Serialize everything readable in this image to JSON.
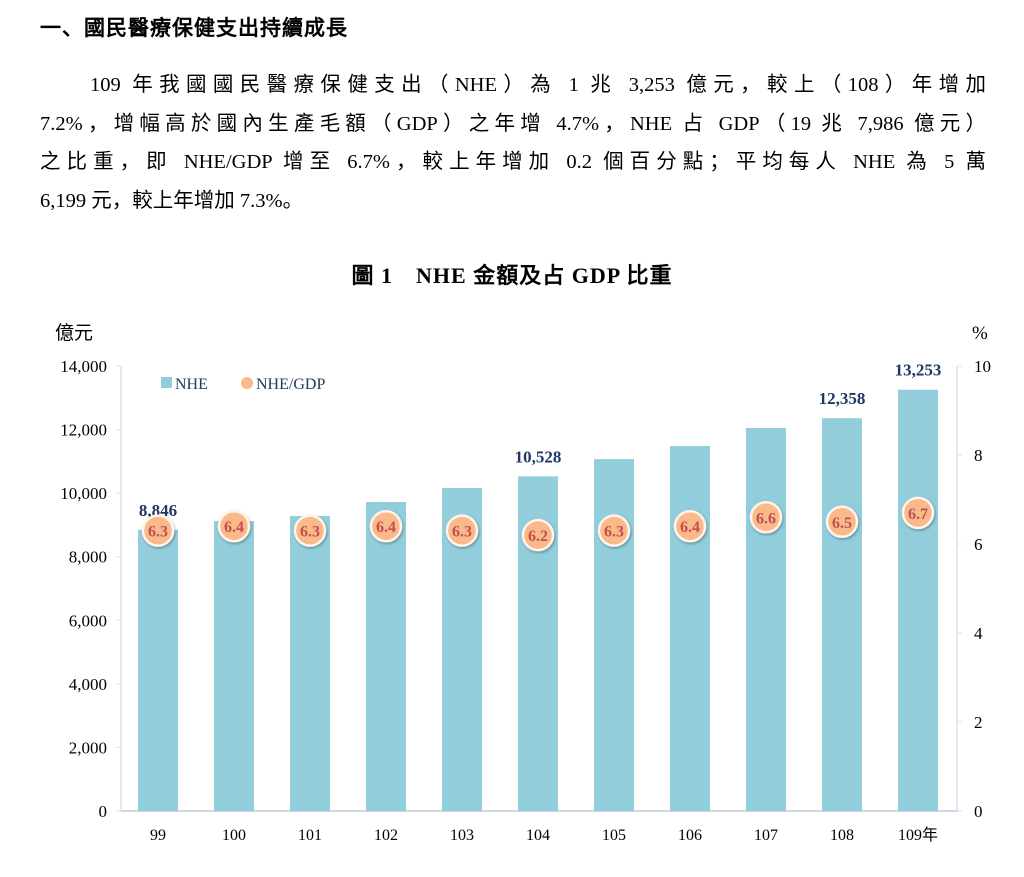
{
  "heading": "一、國民醫療保健支出持續成長",
  "paragraph_lines": [
    "109 年我國國民醫療保健支出（NHE）為 1 兆 3,253 億元，較上（108）年增加",
    "7.2%，增幅高於國內生產毛額（GDP）之年增 4.7%，NHE 占 GDP（19 兆 7,986 億元）",
    "之比重，即 NHE/GDP 增至 6.7%，較上年增加 0.2 個百分點；平均每人 NHE 為 5 萬",
    "6,199 元，較上年增加 7.3%。"
  ],
  "chart_data": {
    "type": "bar",
    "title": "圖 1　NHE 金額及占 GDP 比重",
    "ylabel": "億元",
    "y2label": "%",
    "ylim": [
      0,
      14000
    ],
    "y2lim": [
      0,
      10
    ],
    "yticks": [
      "0",
      "2,000",
      "4,000",
      "6,000",
      "8,000",
      "10,000",
      "12,000",
      "14,000"
    ],
    "y2ticks": [
      "0",
      "2",
      "4",
      "6",
      "8",
      "10"
    ],
    "categories": [
      "99",
      "100",
      "101",
      "102",
      "103",
      "104",
      "105",
      "106",
      "107",
      "108",
      "109年"
    ],
    "legend": {
      "position": "top-left",
      "entries": [
        "NHE",
        "NHE/GDP"
      ]
    },
    "series": [
      {
        "name": "NHE",
        "type": "bar",
        "axis": "left",
        "color": "#92CDDC",
        "values": [
          8846,
          9120,
          9280,
          9720,
          10160,
          10528,
          11070,
          11480,
          12050,
          12358,
          13253
        ],
        "data_labels": {
          "0": "8,846",
          "5": "10,528",
          "9": "12,358",
          "10": "13,253"
        }
      },
      {
        "name": "NHE/GDP",
        "type": "scatter",
        "axis": "right",
        "color": "#F9B98A",
        "values": [
          6.3,
          6.4,
          6.3,
          6.4,
          6.3,
          6.2,
          6.3,
          6.4,
          6.6,
          6.5,
          6.7
        ],
        "labels": [
          "6.3",
          "6.4",
          "6.3",
          "6.4",
          "6.3",
          "6.2",
          "6.3",
          "6.4",
          "6.6",
          "6.5",
          "6.7"
        ]
      }
    ],
    "colors": {
      "label": "#1F3864",
      "point_text": "#C0504D",
      "axis": "#D9E2F0"
    }
  }
}
